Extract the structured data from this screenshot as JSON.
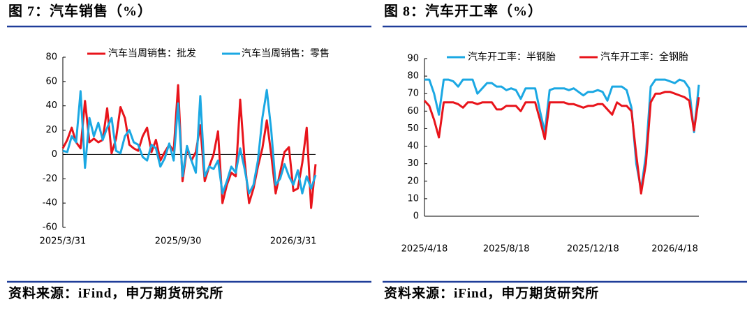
{
  "chart_data": [
    {
      "type": "line",
      "title": "图 7：汽车销售（%）",
      "source": "资料来源：iFind，申万期货研究所",
      "legend": "top",
      "categories": [
        "2025/3/31",
        null,
        null,
        null,
        null,
        null,
        null,
        null,
        null,
        null,
        null,
        null,
        null,
        null,
        null,
        null,
        null,
        null,
        null,
        null,
        null,
        null,
        null,
        null,
        null,
        null,
        "2025/9/30",
        null,
        null,
        null,
        null,
        null,
        null,
        null,
        null,
        null,
        null,
        null,
        null,
        null,
        null,
        null,
        null,
        null,
        null,
        null,
        null,
        null,
        null,
        null,
        null,
        null,
        "2026/3/31",
        null,
        null,
        null,
        null,
        null
      ],
      "series": [
        {
          "name": "汽车当周销售：批发",
          "color": "#e8141b",
          "values": [
            5,
            12,
            22,
            10,
            5,
            44,
            10,
            13,
            10,
            12,
            38,
            1,
            13,
            39,
            30,
            8,
            5,
            3,
            15,
            22,
            2,
            12,
            -5,
            2,
            8,
            3,
            57,
            -22,
            5,
            -5,
            2,
            24,
            -22,
            -10,
            0,
            19,
            -40,
            -25,
            -15,
            -18,
            45,
            -5,
            -40,
            -28,
            -10,
            5,
            28,
            0,
            -32,
            -15,
            2,
            6,
            -30,
            -28,
            -7,
            22,
            -44,
            -8
          ]
        },
        {
          "name": "汽车当周销售：零售",
          "color": "#1ba8e3",
          "values": [
            3,
            2,
            15,
            10,
            52,
            -11,
            30,
            15,
            26,
            12,
            22,
            30,
            3,
            1,
            15,
            20,
            10,
            8,
            -2,
            -5,
            8,
            5,
            -10,
            -3,
            9,
            -5,
            42,
            -18,
            7,
            -5,
            -15,
            48,
            -18,
            -10,
            -12,
            -5,
            -32,
            -22,
            -10,
            -15,
            5,
            -12,
            -32,
            -25,
            -5,
            30,
            53,
            20,
            -25,
            -20,
            -8,
            -18,
            -25,
            -13,
            -32,
            -18,
            -28,
            -17
          ]
        }
      ],
      "ylim": [
        -60,
        80
      ],
      "yticks": [
        -60,
        -40,
        -20,
        0,
        20,
        40,
        60,
        80
      ]
    },
    {
      "type": "line",
      "title": "图 8：汽车开工率（%）",
      "source": "资料来源：iFind，申万期货研究所",
      "legend": "top",
      "categories": [
        "2025/4/18",
        null,
        null,
        null,
        null,
        null,
        null,
        null,
        null,
        null,
        null,
        null,
        null,
        null,
        null,
        null,
        null,
        "2025/8/18",
        null,
        null,
        null,
        null,
        null,
        null,
        null,
        null,
        null,
        null,
        null,
        null,
        null,
        null,
        null,
        null,
        null,
        "2025/12/18",
        null,
        null,
        null,
        null,
        null,
        null,
        null,
        null,
        null,
        null,
        null,
        null,
        null,
        null,
        null,
        null,
        "2026/4/18",
        null,
        null,
        null,
        null,
        null
      ],
      "series": [
        {
          "name": "汽车开工率：半钢胎",
          "color": "#1ba8e3",
          "values": [
            78,
            78,
            70,
            58,
            78,
            78,
            77,
            74,
            78,
            78,
            78,
            70,
            73,
            76,
            76,
            74,
            74,
            72,
            73,
            72,
            67,
            73,
            73,
            73,
            60,
            48,
            72,
            73,
            73,
            73,
            72,
            73,
            71,
            69,
            71,
            71,
            72,
            71,
            66,
            74,
            74,
            74,
            72,
            62,
            30,
            15,
            35,
            74,
            78,
            78,
            78,
            77,
            76,
            78,
            77,
            73,
            48,
            75
          ]
        },
        {
          "name": "汽车开工率：全钢胎",
          "color": "#e8141b",
          "values": [
            66,
            63,
            55,
            45,
            65,
            65,
            65,
            64,
            62,
            65,
            65,
            64,
            65,
            65,
            65,
            61,
            61,
            63,
            63,
            63,
            60,
            65,
            65,
            65,
            55,
            44,
            65,
            65,
            65,
            65,
            64,
            64,
            63,
            62,
            63,
            63,
            64,
            64,
            61,
            58,
            65,
            63,
            63,
            60,
            35,
            13,
            30,
            65,
            70,
            70,
            71,
            71,
            70,
            69,
            68,
            66,
            49,
            68
          ]
        }
      ],
      "ylim": [
        0,
        90
      ],
      "yticks": [
        0,
        10,
        20,
        30,
        40,
        50,
        60,
        70,
        80,
        90
      ]
    }
  ]
}
